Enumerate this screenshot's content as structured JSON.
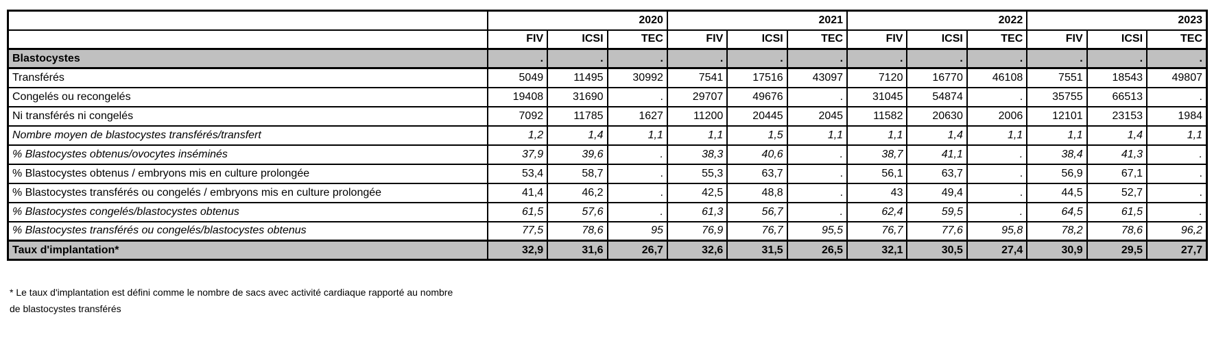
{
  "table": {
    "year_groups": [
      {
        "label": "2020"
      },
      {
        "label": "2021"
      },
      {
        "label": "2022"
      },
      {
        "label": "2023"
      }
    ],
    "sub_headers": [
      "FIV",
      "ICSI",
      "TEC",
      "FIV",
      "ICSI",
      "TEC",
      "FIV",
      "ICSI",
      "TEC",
      "FIV",
      "ICSI",
      "TEC"
    ],
    "rows": [
      {
        "label": "Blastocystes",
        "style": "section",
        "values": [
          ".",
          ".",
          ".",
          ".",
          ".",
          ".",
          ".",
          ".",
          ".",
          ".",
          ".",
          "."
        ]
      },
      {
        "label": "Transférés",
        "style": "normal",
        "values": [
          "5049",
          "11495",
          "30992",
          "7541",
          "17516",
          "43097",
          "7120",
          "16770",
          "46108",
          "7551",
          "18543",
          "49807"
        ]
      },
      {
        "label": "Congelés ou recongelés",
        "style": "normal",
        "values": [
          "19408",
          "31690",
          ".",
          "29707",
          "49676",
          ".",
          "31045",
          "54874",
          ".",
          "35755",
          "66513",
          "."
        ]
      },
      {
        "label": "Ni transférés ni congelés",
        "style": "normal",
        "values": [
          "7092",
          "11785",
          "1627",
          "11200",
          "20445",
          "2045",
          "11582",
          "20630",
          "2006",
          "12101",
          "23153",
          "1984"
        ]
      },
      {
        "label": "Nombre moyen de blastocystes transférés/transfert",
        "style": "italic",
        "values": [
          "1,2",
          "1,4",
          "1,1",
          "1,1",
          "1,5",
          "1,1",
          "1,1",
          "1,4",
          "1,1",
          "1,1",
          "1,4",
          "1,1"
        ]
      },
      {
        "label": "% Blastocystes obtenus/ovocytes inséminés",
        "style": "italic",
        "values": [
          "37,9",
          "39,6",
          ".",
          "38,3",
          "40,6",
          ".",
          "38,7",
          "41,1",
          ".",
          "38,4",
          "41,3",
          "."
        ]
      },
      {
        "label": "% Blastocystes obtenus / embryons mis en culture prolongée",
        "style": "normal",
        "values": [
          "53,4",
          "58,7",
          ".",
          "55,3",
          "63,7",
          ".",
          "56,1",
          "63,7",
          ".",
          "56,9",
          "67,1",
          "."
        ]
      },
      {
        "label": "% Blastocystes transférés ou congelés / embryons mis en culture prolongée",
        "style": "normal",
        "values": [
          "41,4",
          "46,2",
          ".",
          "42,5",
          "48,8",
          ".",
          "43",
          "49,4",
          ".",
          "44,5",
          "52,7",
          "."
        ]
      },
      {
        "label": "% Blastocystes congelés/blastocystes obtenus",
        "style": "italic",
        "values": [
          "61,5",
          "57,6",
          ".",
          "61,3",
          "56,7",
          ".",
          "62,4",
          "59,5",
          ".",
          "64,5",
          "61,5",
          "."
        ]
      },
      {
        "label": "% Blastocystes transférés ou congelés/blastocystes obtenus",
        "style": "italic",
        "values": [
          "77,5",
          "78,6",
          "95",
          "76,9",
          "76,7",
          "95,5",
          "76,7",
          "77,6",
          "95,8",
          "78,2",
          "78,6",
          "96,2"
        ]
      },
      {
        "label": "Taux d'implantation*",
        "style": "section",
        "values": [
          "32,9",
          "31,6",
          "26,7",
          "32,6",
          "31,5",
          "26,5",
          "32,1",
          "30,5",
          "27,4",
          "30,9",
          "29,5",
          "27,7"
        ]
      }
    ]
  },
  "footnote": {
    "line1": "* Le taux d'implantation est défini comme le nombre de sacs avec activité cardiaque rapporté au nombre",
    "line2": "de blastocystes transférés"
  },
  "colors": {
    "section_bg": "#c0c0c0",
    "border": "#000000",
    "text": "#000000",
    "background": "#ffffff"
  }
}
